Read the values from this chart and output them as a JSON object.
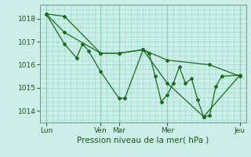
{
  "bg_color": "#cceee8",
  "grid_color": "#99ddcc",
  "line_color": "#1a6b1a",
  "marker_color": "#1a6b1a",
  "xlabel": "Pression niveau de la mer( hPa )",
  "ylim": [
    1013.5,
    1018.6
  ],
  "yticks": [
    1014,
    1015,
    1016,
    1017,
    1018
  ],
  "xlim": [
    0,
    34
  ],
  "xtick_labels": [
    "Lun",
    "Ven",
    "Mar",
    "Mer",
    "Jeu"
  ],
  "xtick_positions": [
    1,
    10,
    13,
    21,
    33
  ],
  "vlines": [
    1,
    10,
    13,
    21,
    33
  ],
  "series1": [
    [
      1,
      1018.2
    ],
    [
      4,
      1018.1
    ],
    [
      10,
      1016.5
    ],
    [
      13,
      1016.5
    ],
    [
      17,
      1016.65
    ],
    [
      21,
      1016.2
    ],
    [
      28,
      1016.0
    ],
    [
      33,
      1015.5
    ]
  ],
  "series2": [
    [
      1,
      1018.2
    ],
    [
      4,
      1016.9
    ],
    [
      6,
      1016.3
    ],
    [
      7,
      1016.9
    ],
    [
      8,
      1016.6
    ],
    [
      10,
      1015.7
    ],
    [
      13,
      1014.55
    ],
    [
      14,
      1014.55
    ],
    [
      17,
      1016.65
    ],
    [
      18,
      1016.5
    ],
    [
      19,
      1015.5
    ],
    [
      20,
      1014.4
    ],
    [
      21,
      1014.7
    ],
    [
      22,
      1015.2
    ],
    [
      23,
      1015.9
    ],
    [
      24,
      1015.2
    ],
    [
      25,
      1015.4
    ],
    [
      26,
      1014.5
    ],
    [
      27,
      1013.75
    ],
    [
      28,
      1013.8
    ],
    [
      29,
      1015.05
    ],
    [
      30,
      1015.5
    ],
    [
      33,
      1015.55
    ]
  ],
  "series3": [
    [
      1,
      1018.2
    ],
    [
      4,
      1017.4
    ],
    [
      10,
      1016.5
    ],
    [
      13,
      1016.5
    ],
    [
      17,
      1016.65
    ],
    [
      21,
      1015.2
    ],
    [
      27,
      1013.75
    ],
    [
      33,
      1015.55
    ]
  ]
}
